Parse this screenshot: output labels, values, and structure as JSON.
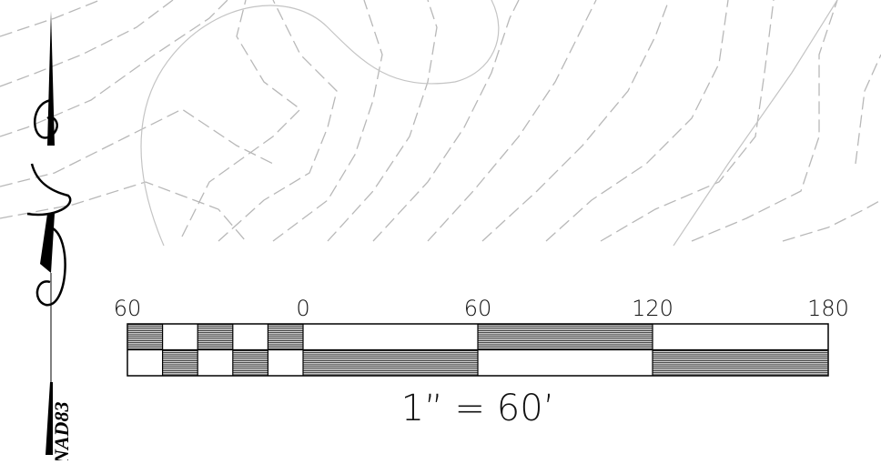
{
  "scale_bar": {
    "labels": [
      "60",
      "0",
      "60",
      "120",
      "180"
    ],
    "ratio": "1” = 60’"
  },
  "datum": "NAD83"
}
